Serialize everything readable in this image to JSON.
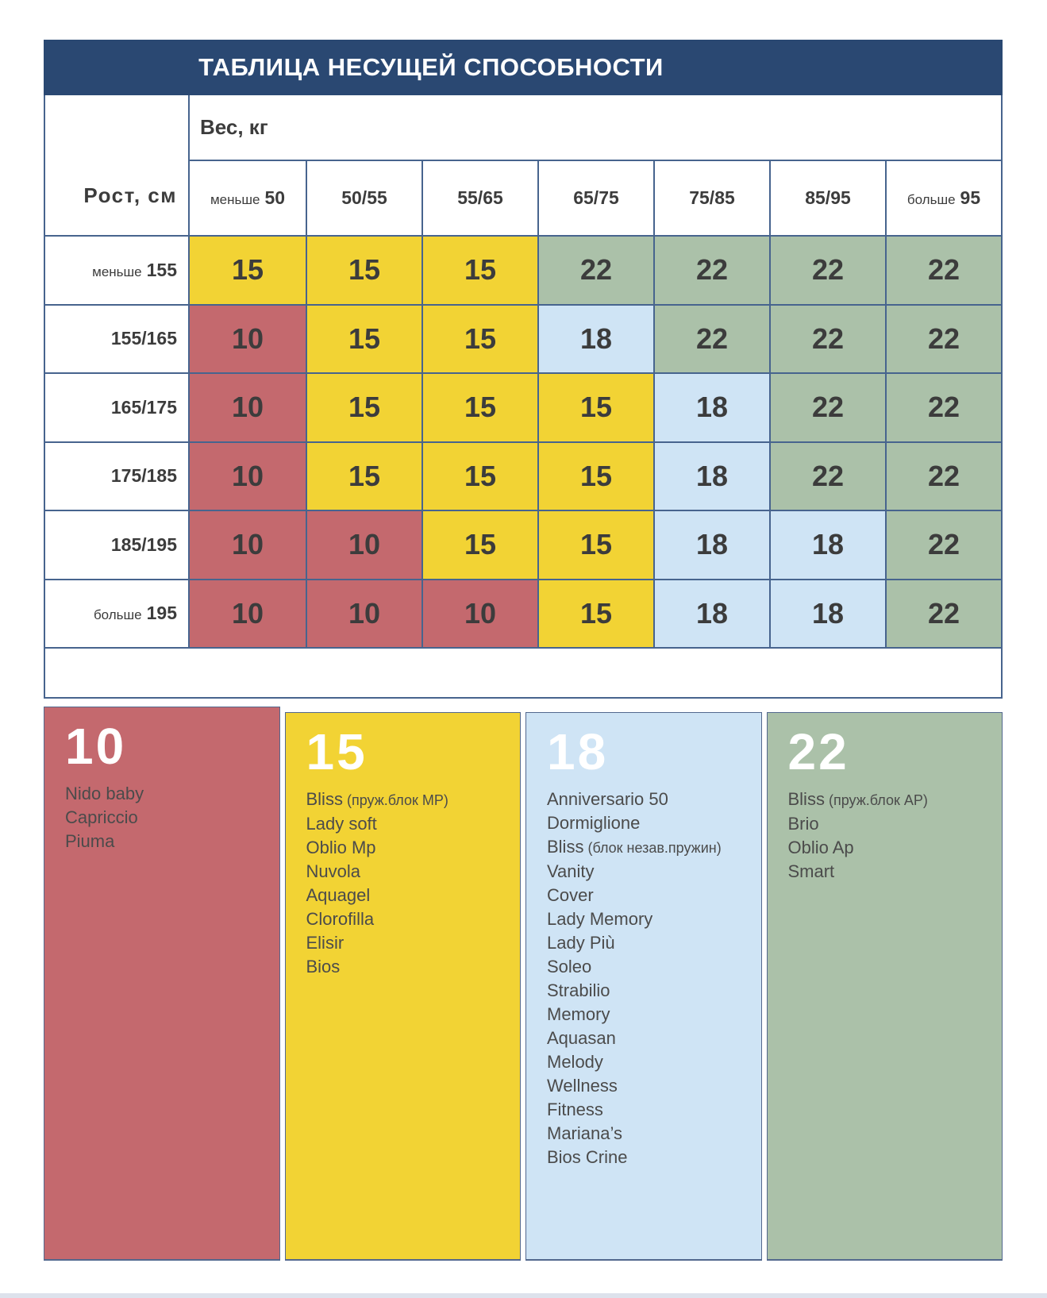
{
  "chart_data": {
    "type": "heatmap",
    "title": "ТАБЛИЦА НЕСУЩЕЙ СПОСОБНОСТИ",
    "x_axis_label": "Вес, кг",
    "y_axis_label": "Рост, см",
    "columns": [
      {
        "prefix": "меньше",
        "label": "50"
      },
      {
        "label": "50/55"
      },
      {
        "label": "55/65"
      },
      {
        "label": "65/75"
      },
      {
        "label": "75/85"
      },
      {
        "label": "85/95"
      },
      {
        "prefix": "больше",
        "label": "95"
      }
    ],
    "rows": [
      {
        "prefix": "меньше",
        "label": "155",
        "values": [
          15,
          15,
          15,
          22,
          22,
          22,
          22
        ]
      },
      {
        "label": "155/165",
        "values": [
          10,
          15,
          15,
          18,
          22,
          22,
          22
        ]
      },
      {
        "label": "165/175",
        "values": [
          10,
          15,
          15,
          15,
          18,
          22,
          22
        ]
      },
      {
        "label": "175/185",
        "values": [
          10,
          15,
          15,
          15,
          18,
          22,
          22
        ]
      },
      {
        "label": "185/195",
        "values": [
          10,
          10,
          15,
          15,
          18,
          18,
          22
        ]
      },
      {
        "prefix": "больше",
        "label": "195",
        "values": [
          10,
          10,
          10,
          15,
          18,
          18,
          22
        ]
      }
    ],
    "value_colors": {
      "10": "#c4696e",
      "15": "#f2d334",
      "18": "#cfe4f5",
      "22": "#abc1a9"
    }
  },
  "legend": [
    {
      "value": "10",
      "items": [
        {
          "name": "Nido baby"
        },
        {
          "name": "Capriccio"
        },
        {
          "name": "Piuma"
        }
      ]
    },
    {
      "value": "15",
      "items": [
        {
          "name": "Bliss",
          "note": "(пруж.блок MP)"
        },
        {
          "name": "Lady soft"
        },
        {
          "name": "Oblio Mp"
        },
        {
          "name": "Nuvola"
        },
        {
          "name": "Aquagel"
        },
        {
          "name": "Clorofilla"
        },
        {
          "name": "Elisir"
        },
        {
          "name": "Bios"
        }
      ]
    },
    {
      "value": "18",
      "items": [
        {
          "name": "Anniversario 50"
        },
        {
          "name": "Dormiglione"
        },
        {
          "name": "Bliss",
          "note": "(блок незав.пружин)"
        },
        {
          "name": "Vanity"
        },
        {
          "name": "Cover"
        },
        {
          "name": "Lady Memory"
        },
        {
          "name": "Lady Più"
        },
        {
          "name": "Soleo"
        },
        {
          "name": "Strabilio"
        },
        {
          "name": "Memory"
        },
        {
          "name": "Aquasan"
        },
        {
          "name": "Melody"
        },
        {
          "name": "Wellness"
        },
        {
          "name": "Fitness"
        },
        {
          "name": "Mariana’s"
        },
        {
          "name": "Bios Crine"
        }
      ]
    },
    {
      "value": "22",
      "items": [
        {
          "name": "Bliss",
          "note": "(пруж.блок AP)"
        },
        {
          "name": "Brio"
        },
        {
          "name": "Oblio Ap"
        },
        {
          "name": "Smart"
        }
      ]
    }
  ],
  "colors": {
    "navy": "#2a4872",
    "line": "#47648e",
    "cell_text": "#3c3c3c",
    "list_text": "#4b4b4b",
    "legend_border": "#53688e",
    "bottom_strip": "#dde2ec",
    "title_text": "#ffffff",
    "page_bg": "#ffffff"
  }
}
